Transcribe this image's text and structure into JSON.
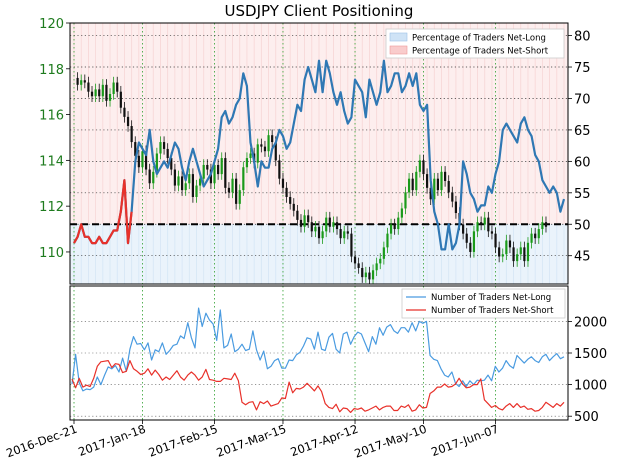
{
  "colors": {
    "price_axis_text": "#1e7b1e",
    "net_long": "#2f78b4",
    "net_short": "#e8312a",
    "legend_long_fill": "#cfe3f6",
    "legend_short_fill": "#f9cccc",
    "candle_up": "#1a9a1a",
    "candle_down": "#111111",
    "grid_green": "#2ea02e"
  },
  "chart_data": [
    {
      "type": "line",
      "title": "USDJPY Client Positioning",
      "x_tick_labels": [
        "2016-Dec-21",
        "2017-Jan-18",
        "2017-Feb-15",
        "2017-Mar-15",
        "2017-Apr-12",
        "2017-May-10",
        "2017-Jun-07"
      ],
      "left_axis": {
        "ticks": [
          "110",
          "112",
          "114",
          "116",
          "118",
          "120"
        ],
        "ylim": [
          108.6,
          120
        ]
      },
      "right_axis": {
        "ticks": [
          "45",
          "50",
          "55",
          "60",
          "65",
          "70",
          "75",
          "80"
        ],
        "ylim": [
          40.5,
          82
        ]
      },
      "reference_line": {
        "value": 50,
        "style": "dashed"
      },
      "legend": {
        "position": "top-right",
        "entries": [
          "Percentage of Traders Net-Long",
          "Percentage of Traders Net-Short"
        ]
      },
      "grid": true,
      "series": [
        {
          "name": "Percentage of Traders Net-Long",
          "axis": "right",
          "values": [
            47,
            48,
            50,
            48,
            48,
            47,
            47,
            48,
            47,
            47,
            48,
            49,
            49,
            52,
            57,
            47,
            52,
            60,
            63,
            62,
            61,
            65,
            60,
            58,
            59,
            60,
            59,
            61,
            63,
            62,
            59,
            57,
            60,
            62,
            60,
            58,
            56,
            57,
            58,
            60,
            62,
            67,
            68,
            66,
            67,
            69,
            70,
            74,
            72,
            63,
            60,
            56,
            60,
            59,
            59,
            62,
            63,
            65,
            64,
            62,
            63,
            66,
            69,
            68,
            73,
            75,
            73,
            71,
            76,
            71,
            76,
            74,
            71,
            69,
            71,
            68,
            66,
            67,
            73,
            72,
            71,
            67,
            73,
            71,
            69,
            71,
            76,
            71,
            72,
            74,
            74,
            71,
            72,
            74,
            72,
            74,
            69,
            68,
            69,
            57,
            52,
            50,
            46,
            46,
            50,
            46,
            47,
            50,
            60,
            58,
            55,
            54,
            52,
            53,
            53,
            56,
            55,
            58,
            60,
            65,
            66,
            65,
            64,
            63,
            66,
            67,
            65,
            64,
            61,
            60,
            57,
            56,
            55,
            56,
            55,
            52,
            54
          ],
          "extra_series_values": {
            "lower_segment_x_start": 0
          }
        },
        {
          "name": "Percentage of Traders Net-Short",
          "axis": "right",
          "values": [
            53,
            52,
            50,
            52,
            52,
            53,
            53,
            52,
            53,
            53,
            52,
            51,
            51,
            48,
            43,
            53,
            48
          ]
        },
        {
          "name": "USDJPY price",
          "axis": "left",
          "values": [
            117.6,
            117.3,
            117.5,
            117.4,
            117.0,
            116.8,
            117.1,
            116.8,
            117.3,
            116.6,
            116.9,
            117.4,
            117.0,
            116.3,
            115.9,
            115.5,
            114.8,
            114.2,
            113.7,
            114.4,
            113.6,
            113.0,
            113.5,
            114.3,
            114.8,
            114.5,
            114.1,
            113.6,
            112.9,
            113.3,
            112.7,
            113.0,
            113.4,
            112.4,
            112.9,
            113.2,
            113.8,
            113.6,
            113.0,
            113.8,
            113.4,
            114.1,
            112.8,
            112.6,
            113.2,
            112.1,
            112.7,
            113.7,
            114.1,
            114.3,
            113.9,
            114.7,
            114.6,
            114.4,
            115.1,
            114.8,
            114.0,
            113.2,
            112.8,
            112.4,
            112.1,
            111.8,
            111.4,
            111.1,
            111.6,
            111.3,
            110.9,
            111.1,
            110.6,
            110.9,
            111.5,
            111.1,
            111.3,
            111.0,
            110.6,
            110.9,
            110.8,
            109.8,
            109.5,
            109.3,
            108.9,
            109.1,
            108.8,
            109.2,
            109.5,
            109.7,
            110.2,
            110.8,
            111.2,
            111.0,
            111.5,
            111.9,
            112.6,
            113.2,
            112.7,
            113.5,
            114.0,
            113.4,
            112.8,
            112.3,
            113.2,
            112.7,
            113.5,
            113.1,
            112.6,
            112.2,
            111.7,
            111.2,
            110.8,
            110.4,
            110.0,
            110.9,
            111.3,
            111.2,
            111.5,
            110.9,
            110.8,
            110.2,
            109.8,
            109.9,
            110.5,
            110.2,
            109.6,
            109.9,
            110.2,
            109.6,
            110.4,
            110.8,
            110.6,
            111.0,
            111.3,
            111.1
          ]
        }
      ]
    },
    {
      "type": "line",
      "x_tick_labels": [
        "2016-Dec-21",
        "2017-Jan-18",
        "2017-Feb-15",
        "2017-Mar-15",
        "2017-Apr-12",
        "2017-May-10",
        "2017-Jun-07"
      ],
      "right_axis": {
        "ticks": [
          "500",
          "1000",
          "1500",
          "2000"
        ],
        "ylim": [
          440,
          2560
        ]
      },
      "legend": {
        "position": "top-right",
        "entries": [
          "Number of Traders Net-Long",
          "Number of Traders Net-Short"
        ]
      },
      "grid": true,
      "series": [
        {
          "name": "Number of Traders Net-Long",
          "values": [
            1010,
            1480,
            1030,
            900,
            930,
            920,
            960,
            1120,
            1000,
            1150,
            1280,
            1250,
            1300,
            1200,
            1420,
            1210,
            1560,
            1760,
            1640,
            1650,
            1550,
            1660,
            1390,
            1550,
            1520,
            1660,
            1480,
            1540,
            1620,
            1640,
            1770,
            1730,
            1980,
            1740,
            1580,
            2210,
            1920,
            2130,
            2020,
            1960,
            1700,
            2180,
            1580,
            1620,
            1800,
            1520,
            1560,
            1640,
            1540,
            1560,
            1850,
            1550,
            1390,
            1530,
            1250,
            1290,
            1380,
            1410,
            1260,
            1260,
            1390,
            1380,
            1470,
            1510,
            1610,
            1740,
            1720,
            1560,
            1830,
            1560,
            1540,
            1750,
            1810,
            1560,
            1500,
            1800,
            1830,
            1640,
            1760,
            1830,
            1800,
            1660,
            1520,
            1760,
            1640,
            1900,
            1780,
            1910,
            1950,
            1850,
            1810,
            1900,
            1900,
            1830,
            1980,
            1850,
            2000,
            1970,
            2000,
            1460,
            1400,
            1380,
            1250,
            1150,
            1120,
            1200,
            1020,
            970,
            1060,
            970,
            1060,
            1000,
            1070,
            1060,
            1070,
            1150,
            1060,
            1290,
            1200,
            1260,
            1380,
            1300,
            1260,
            1460,
            1400,
            1340,
            1400,
            1440,
            1380,
            1350,
            1440,
            1480,
            1380,
            1440,
            1490,
            1410,
            1440
          ]
        },
        {
          "name": "Number of Traders Net-Short",
          "values": [
            1090,
            950,
            1100,
            960,
            990,
            970,
            1100,
            1290,
            1360,
            1370,
            1380,
            1270,
            1330,
            1320,
            1190,
            1210,
            1380,
            1250,
            1210,
            1160,
            1180,
            1250,
            1150,
            1230,
            1160,
            1070,
            1120,
            1080,
            1150,
            1220,
            1120,
            1070,
            1150,
            1200,
            1150,
            1070,
            1120,
            1240,
            1080,
            1070,
            1050,
            1050,
            1100,
            1090,
            1080,
            1180,
            1060,
            720,
            680,
            720,
            730,
            600,
            730,
            700,
            740,
            660,
            680,
            700,
            790,
            780,
            1040,
            870,
            940,
            930,
            960,
            1020,
            960,
            900,
            980,
            890,
            700,
            640,
            620,
            690,
            570,
            630,
            620,
            560,
            620,
            610,
            630,
            580,
            600,
            630,
            660,
            600,
            640,
            660,
            660,
            590,
            590,
            660,
            640,
            680,
            580,
            600,
            680,
            630,
            640,
            860,
            900,
            960,
            960,
            1010,
            960,
            970,
            1010,
            1100,
            1010,
            950,
            960,
            1000,
            1000,
            1090,
            760,
            700,
            640,
            670,
            620,
            600,
            660,
            700,
            640,
            700,
            640,
            660,
            610,
            620,
            580,
            590,
            640,
            720,
            680,
            640,
            700,
            660,
            720
          ]
        }
      ]
    }
  ]
}
